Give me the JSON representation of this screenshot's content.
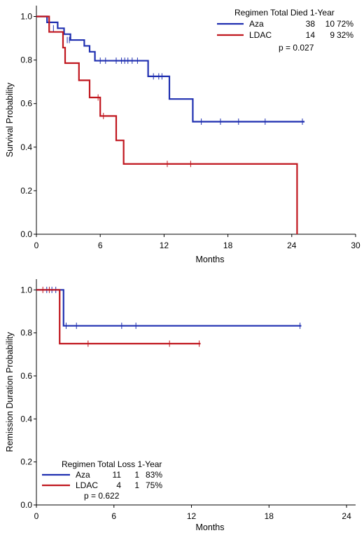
{
  "chart_data": [
    {
      "type": "line",
      "step": true,
      "xlabel": "Months",
      "ylabel": "Survival Probability",
      "xlim": [
        0,
        30
      ],
      "ylim": [
        0,
        1.05
      ],
      "xticks": [
        "0",
        "6",
        "12",
        "18",
        "24",
        "30"
      ],
      "yticks": [
        "0.0",
        "0.2",
        "0.4",
        "0.6",
        "0.8",
        "1.0"
      ],
      "legend": {
        "header": "Regimen Total Died 1-Year",
        "pvalue": "p = 0.027",
        "rows": [
          {
            "name": "Aza",
            "total": "38",
            "events": "10",
            "one_year": "72%",
            "color": "#1f2fb0"
          },
          {
            "name": "LDAC",
            "total": "14",
            "events": "9",
            "one_year": "32%",
            "color": "#c0161e"
          }
        ]
      },
      "series": [
        {
          "name": "Aza",
          "color": "#1f2fb0",
          "steps": [
            [
              0,
              1.0
            ],
            [
              1.0,
              0.973
            ],
            [
              2.0,
              0.946
            ],
            [
              2.6,
              0.919
            ],
            [
              3.2,
              0.892
            ],
            [
              4.5,
              0.865
            ],
            [
              5.0,
              0.838
            ],
            [
              5.5,
              0.797
            ],
            [
              10.5,
              0.725
            ],
            [
              12.5,
              0.621
            ],
            [
              14.7,
              0.517
            ],
            [
              25.2,
              0.517
            ]
          ],
          "censors": [
            [
              1.6,
              0.946
            ],
            [
              2.9,
              0.892
            ],
            [
              3.1,
              0.892
            ],
            [
              6.0,
              0.797
            ],
            [
              6.5,
              0.797
            ],
            [
              7.5,
              0.797
            ],
            [
              8.0,
              0.797
            ],
            [
              8.3,
              0.797
            ],
            [
              8.6,
              0.797
            ],
            [
              9.0,
              0.797
            ],
            [
              9.5,
              0.797
            ],
            [
              11.0,
              0.725
            ],
            [
              11.5,
              0.725
            ],
            [
              11.8,
              0.725
            ],
            [
              15.5,
              0.517
            ],
            [
              17.3,
              0.517
            ],
            [
              19.0,
              0.517
            ],
            [
              21.5,
              0.517
            ],
            [
              25.0,
              0.517
            ]
          ]
        },
        {
          "name": "LDAC",
          "color": "#c0161e",
          "steps": [
            [
              0,
              1.0
            ],
            [
              1.2,
              0.929
            ],
            [
              2.5,
              0.857
            ],
            [
              2.7,
              0.786
            ],
            [
              4.0,
              0.707
            ],
            [
              5.0,
              0.628
            ],
            [
              6.0,
              0.543
            ],
            [
              7.5,
              0.431
            ],
            [
              8.2,
              0.323
            ],
            [
              24.5,
              0.323
            ],
            [
              24.5,
              0.0
            ]
          ],
          "censors": [
            [
              5.8,
              0.628
            ],
            [
              6.3,
              0.543
            ],
            [
              12.3,
              0.323
            ],
            [
              14.5,
              0.323
            ]
          ]
        }
      ]
    },
    {
      "type": "line",
      "step": true,
      "xlabel": "Months",
      "ylabel": "Remission Duration Probability",
      "xlim": [
        0,
        24.7
      ],
      "ylim": [
        0,
        1.05
      ],
      "xticks": [
        "0",
        "6",
        "12",
        "18",
        "24"
      ],
      "yticks": [
        "0.0",
        "0.2",
        "0.4",
        "0.6",
        "0.8",
        "1.0"
      ],
      "legend": {
        "header": "Regimen Total Loss 1-Year",
        "pvalue": "p = 0.622",
        "rows": [
          {
            "name": "Aza",
            "total": "11",
            "events": "1",
            "one_year": "83%",
            "color": "#1f2fb0"
          },
          {
            "name": "LDAC",
            "total": "4",
            "events": "1",
            "one_year": "75%",
            "color": "#c0161e"
          }
        ]
      },
      "series": [
        {
          "name": "Aza",
          "color": "#1f2fb0",
          "steps": [
            [
              0,
              1.0
            ],
            [
              2.1,
              0.833
            ],
            [
              20.5,
              0.833
            ]
          ],
          "censors": [
            [
              0.8,
              1.0
            ],
            [
              1.2,
              1.0
            ],
            [
              1.5,
              1.0
            ],
            [
              2.3,
              0.833
            ],
            [
              3.1,
              0.833
            ],
            [
              6.6,
              0.833
            ],
            [
              7.7,
              0.833
            ],
            [
              20.4,
              0.833
            ]
          ]
        },
        {
          "name": "LDAC",
          "color": "#c0161e",
          "steps": [
            [
              0,
              1.0
            ],
            [
              1.8,
              0.75
            ],
            [
              12.7,
              0.75
            ]
          ],
          "censors": [
            [
              0.5,
              1.0
            ],
            [
              1.0,
              1.0
            ],
            [
              4.0,
              0.75
            ],
            [
              10.3,
              0.75
            ],
            [
              12.6,
              0.75
            ]
          ]
        }
      ]
    }
  ]
}
